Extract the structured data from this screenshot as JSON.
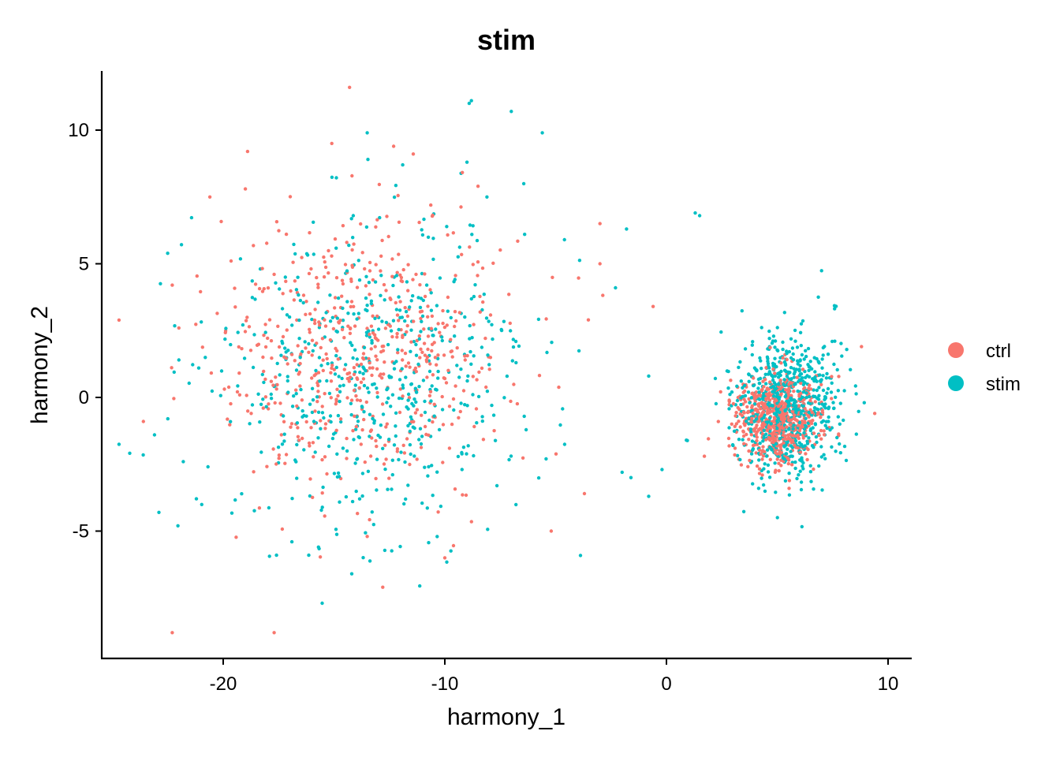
{
  "chart_data": {
    "type": "scatter",
    "title": "stim",
    "xlabel": "harmony_1",
    "ylabel": "harmony_2",
    "xlim": [
      -25.5,
      11
    ],
    "ylim": [
      -9.5,
      12.2
    ],
    "xticks": [
      -20,
      -10,
      0,
      10
    ],
    "xtick_labels": [
      "-20",
      "-10",
      "0",
      "10"
    ],
    "yticks": [
      -5,
      0,
      5,
      10
    ],
    "ytick_labels": [
      "-5",
      "0",
      "5",
      "10"
    ],
    "grid": false,
    "legend_position": "right",
    "series": [
      {
        "name": "ctrl",
        "color": "#F8766D",
        "clusters": [
          {
            "x": -13.5,
            "y": 1.8,
            "sx": 3.3,
            "sy": 2.6,
            "n": 560
          },
          {
            "x": 5.0,
            "y": -0.8,
            "sx": 0.95,
            "sy": 0.85,
            "n": 620
          }
        ],
        "outliers": [
          [
            -22.3,
            -8.8
          ],
          [
            -17.7,
            -8.8
          ],
          [
            -23.6,
            -0.9
          ],
          [
            -22.3,
            4.2
          ],
          [
            -18.9,
            9.2
          ],
          [
            -15.1,
            9.5
          ],
          [
            -12.8,
            -7.1
          ],
          [
            -8.5,
            7.9
          ],
          [
            -3.0,
            6.5
          ],
          [
            -3.0,
            5.0
          ],
          [
            -5.2,
            -5.0
          ],
          [
            -0.6,
            3.4
          ],
          [
            8.8,
            1.9
          ],
          [
            9.4,
            -0.6
          ],
          [
            -22.0,
            2.6
          ],
          [
            -20.6,
            7.5
          ],
          [
            -19.0,
            7.8
          ],
          [
            -10.0,
            -6.0
          ],
          [
            -13.5,
            -5.2
          ],
          [
            -3.7,
            -3.6
          ]
        ]
      },
      {
        "name": "stim",
        "color": "#00BFC4",
        "clusters": [
          {
            "x": -13.0,
            "y": 0.8,
            "sx": 3.5,
            "sy": 2.9,
            "n": 560
          },
          {
            "x": 5.4,
            "y": -0.3,
            "sx": 1.15,
            "sy": 1.35,
            "n": 720
          }
        ],
        "outliers": [
          [
            -8.8,
            11.1
          ],
          [
            -8.9,
            11.0
          ],
          [
            -7.0,
            10.7
          ],
          [
            -13.5,
            9.9
          ],
          [
            -5.6,
            9.9
          ],
          [
            -9.0,
            8.8
          ],
          [
            -11.9,
            8.7
          ],
          [
            1.3,
            6.9
          ],
          [
            1.5,
            6.8
          ],
          [
            -2.3,
            4.1
          ],
          [
            -0.8,
            -3.7
          ],
          [
            -22.9,
            -4.3
          ],
          [
            -23.1,
            -1.4
          ],
          [
            -22.0,
            1.4
          ],
          [
            -14.2,
            -6.6
          ],
          [
            -15.7,
            -5.6
          ],
          [
            -1.6,
            -3.0
          ],
          [
            -2.0,
            -2.8
          ],
          [
            -0.2,
            -2.7
          ],
          [
            0.9,
            -1.6
          ],
          [
            -0.8,
            0.8
          ],
          [
            -22.5,
            -0.8
          ],
          [
            -21.8,
            -2.4
          ],
          [
            -16.9,
            -5.4
          ],
          [
            -6.4,
            6.1
          ],
          [
            -8.1,
            7.5
          ],
          [
            -4.6,
            5.9
          ],
          [
            -1.8,
            6.3
          ]
        ]
      }
    ]
  }
}
